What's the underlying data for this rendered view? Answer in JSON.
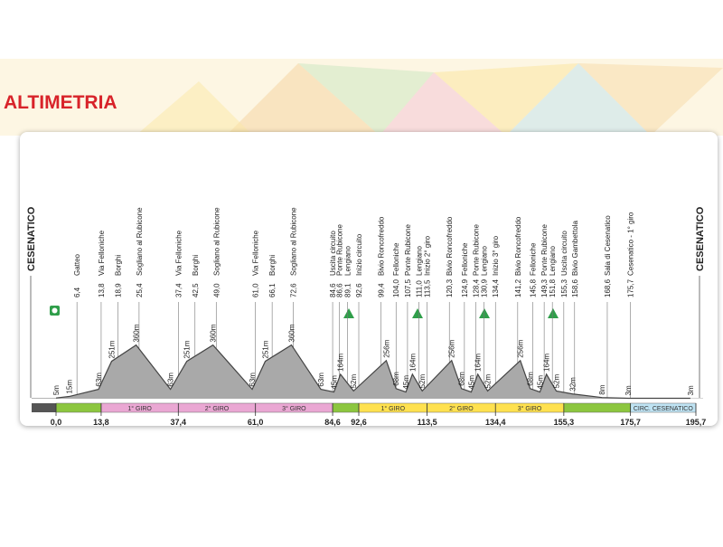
{
  "chart_data": {
    "type": "profile",
    "title": "ALTIMETRIA",
    "start": "CESENATICO",
    "finish": "CESENATICO",
    "xlim": [
      0,
      195.7
    ],
    "ylim": [
      0,
      400
    ],
    "xticks": [
      {
        "value": 0,
        "label": "0,0"
      },
      {
        "value": 13.8,
        "label": "13,8"
      },
      {
        "value": 37.4,
        "label": "37,4"
      },
      {
        "value": 61,
        "label": "61,0"
      },
      {
        "value": 84.6,
        "label": "84,6"
      },
      {
        "value": 92.6,
        "label": "92,6"
      },
      {
        "value": 113.5,
        "label": "113,5"
      },
      {
        "value": 134.4,
        "label": "134,4"
      },
      {
        "value": 155.3,
        "label": "155,3"
      },
      {
        "value": 175.7,
        "label": "175,7"
      },
      {
        "value": 195.7,
        "label": "195,7"
      }
    ],
    "section_labels": [
      null,
      "1° GIRO",
      "2° GIRO",
      "3° GIRO",
      null,
      "1° GIRO",
      "2° GIRO",
      "3° GIRO",
      null,
      "CIRC. CESENATICO"
    ],
    "section_colors": [
      "#8cc63f",
      "#eaa7d3",
      "#eaa7d3",
      "#eaa7d3",
      "#8cc63f",
      "#ffe14f",
      "#ffe14f",
      "#ffe14f",
      "#8cc63f",
      "#bfe3f3"
    ],
    "waypoints": {
      "km": [
        {
          "value": 6.4,
          "label": "6,4"
        },
        {
          "value": 13.8,
          "label": "13,8"
        },
        {
          "value": 18.9,
          "label": "18,9"
        },
        {
          "value": 25.4,
          "label": "25,4"
        },
        {
          "value": 37.4,
          "label": "37,4"
        },
        {
          "value": 42.5,
          "label": "42,5"
        },
        {
          "value": 49,
          "label": "49,0"
        },
        {
          "value": 61,
          "label": "61,0"
        },
        {
          "value": 66.1,
          "label": "66,1"
        },
        {
          "value": 72.6,
          "label": "72,6"
        },
        {
          "value": 84.6,
          "label": "84,6"
        },
        {
          "value": 86.6,
          "label": "86,6"
        },
        {
          "value": 89.1,
          "label": "89,1"
        },
        {
          "value": 92.6,
          "label": "92,6"
        },
        {
          "value": 99.4,
          "label": "99,4"
        },
        {
          "value": 104,
          "label": "104,0"
        },
        {
          "value": 107.5,
          "label": "107,5"
        },
        {
          "value": 111,
          "label": "111,0"
        },
        {
          "value": 113.5,
          "label": "113,5"
        },
        {
          "value": 120.3,
          "label": "120,3"
        },
        {
          "value": 124.9,
          "label": "124,9"
        },
        {
          "value": 128.4,
          "label": "128,4"
        },
        {
          "value": 130.9,
          "label": "130,9"
        },
        {
          "value": 134.4,
          "label": "134,4"
        },
        {
          "value": 141.2,
          "label": "141,2"
        },
        {
          "value": 145.8,
          "label": "145,8"
        },
        {
          "value": 149.3,
          "label": "149,3"
        },
        {
          "value": 151.8,
          "label": "151,8"
        },
        {
          "value": 155.3,
          "label": "155,3"
        },
        {
          "value": 158.6,
          "label": "158,6"
        },
        {
          "value": 168.6,
          "label": "168,6"
        },
        {
          "value": 175.7,
          "label": "175,7"
        }
      ],
      "names": [
        "Gatteo",
        "Via Felloniche",
        "Borghi",
        "Sogliano al Rubicone",
        "Via Felloniche",
        "Borghi",
        "Sogliano al Rubicone",
        "Via Felloniche",
        "Borghi",
        "Sogliano al Rubicone",
        "Uscita circuito",
        "Ponte Rubicone",
        "Lengiano",
        "Inizio circuito",
        "Bivio Roncofreddo",
        "Felloniche",
        "Ponte Rubicone",
        "Lengiano",
        "Inizio 2° giro",
        "Bivio Roncofreddo",
        "Felloniche",
        "Ponte Rubicone",
        "Lengiano",
        "Inizio 3° giro",
        "Bivio Roncofreddo",
        "Felloniche",
        "Ponte Rubicone",
        "Lengiano",
        "Uscita circuito",
        "Bivio Gambettola",
        "Sala di Cesenatico",
        "Cesenatico - 1° giro"
      ]
    },
    "x": [
      0,
      4,
      13,
      17,
      24.5,
      35,
      40,
      48,
      60,
      64,
      72,
      81,
      85,
      87,
      91,
      101,
      104,
      107,
      109,
      112,
      121,
      124,
      127,
      129,
      132,
      142,
      145,
      148,
      150,
      153,
      158,
      167,
      175,
      194
    ],
    "values": [
      5,
      15,
      63,
      251,
      360,
      63,
      251,
      360,
      63,
      251,
      360,
      63,
      45,
      164,
      52,
      256,
      68,
      45,
      164,
      52,
      256,
      68,
      45,
      164,
      52,
      256,
      68,
      45,
      164,
      52,
      32,
      8,
      3,
      3
    ],
    "value_labels": [
      "5m",
      "15m",
      "63m",
      "251m",
      "360m",
      "63m",
      "251m",
      "360m",
      "63m",
      "251m",
      "360m",
      "63m",
      "45m",
      "164m",
      "52m",
      "256m",
      "68m",
      "45m",
      "164m",
      "52m",
      "256m",
      "68m",
      "45m",
      "164m",
      "52m",
      "256m",
      "68m",
      "45m",
      "164m",
      "52m",
      "32m",
      "8m",
      "3m",
      "3m"
    ],
    "color": "#a9a9a9"
  }
}
